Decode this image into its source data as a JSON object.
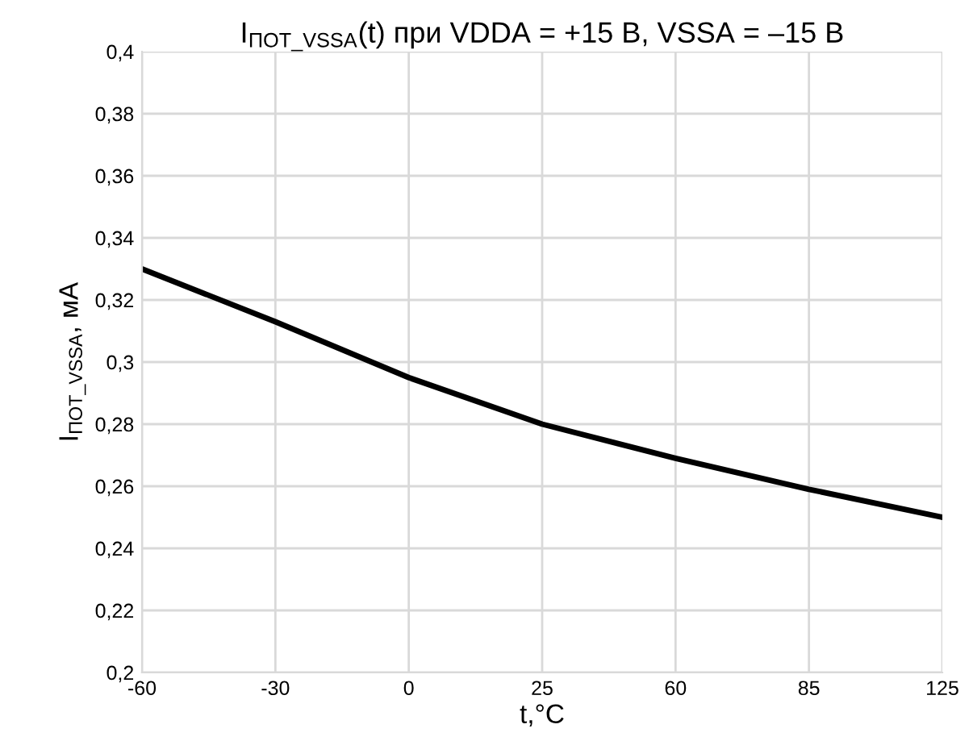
{
  "chart_data": {
    "type": "line",
    "title": "I$_{ПОТ_VSSA}$(t) при VDDA = +15 В, VSSA = –15 В",
    "xlabel": "t,°C",
    "ylabel": "I$_{ПОТ_VSSA}$, мА",
    "categories": [
      "-60",
      "-30",
      "0",
      "25",
      "60",
      "85",
      "125"
    ],
    "series": [
      {
        "color": "#000000",
        "values": [
          0.33,
          0.313,
          0.295,
          0.28,
          0.269,
          0.259,
          0.25
        ]
      }
    ],
    "ylim": [
      0.2,
      0.4
    ],
    "yticks": [
      {
        "value": 0.2,
        "label": "0,2"
      },
      {
        "value": 0.22,
        "label": "0,22"
      },
      {
        "value": 0.24,
        "label": "0,24"
      },
      {
        "value": 0.26,
        "label": "0,26"
      },
      {
        "value": 0.28,
        "label": "0,28"
      },
      {
        "value": 0.3,
        "label": "0,3"
      },
      {
        "value": 0.32,
        "label": "0,32"
      },
      {
        "value": 0.34,
        "label": "0,34"
      },
      {
        "value": 0.36,
        "label": "0,36"
      },
      {
        "value": 0.38,
        "label": "0,38"
      },
      {
        "value": 0.4,
        "label": "0,4"
      }
    ],
    "grid": true,
    "marker": "none",
    "line_style": "solid"
  }
}
